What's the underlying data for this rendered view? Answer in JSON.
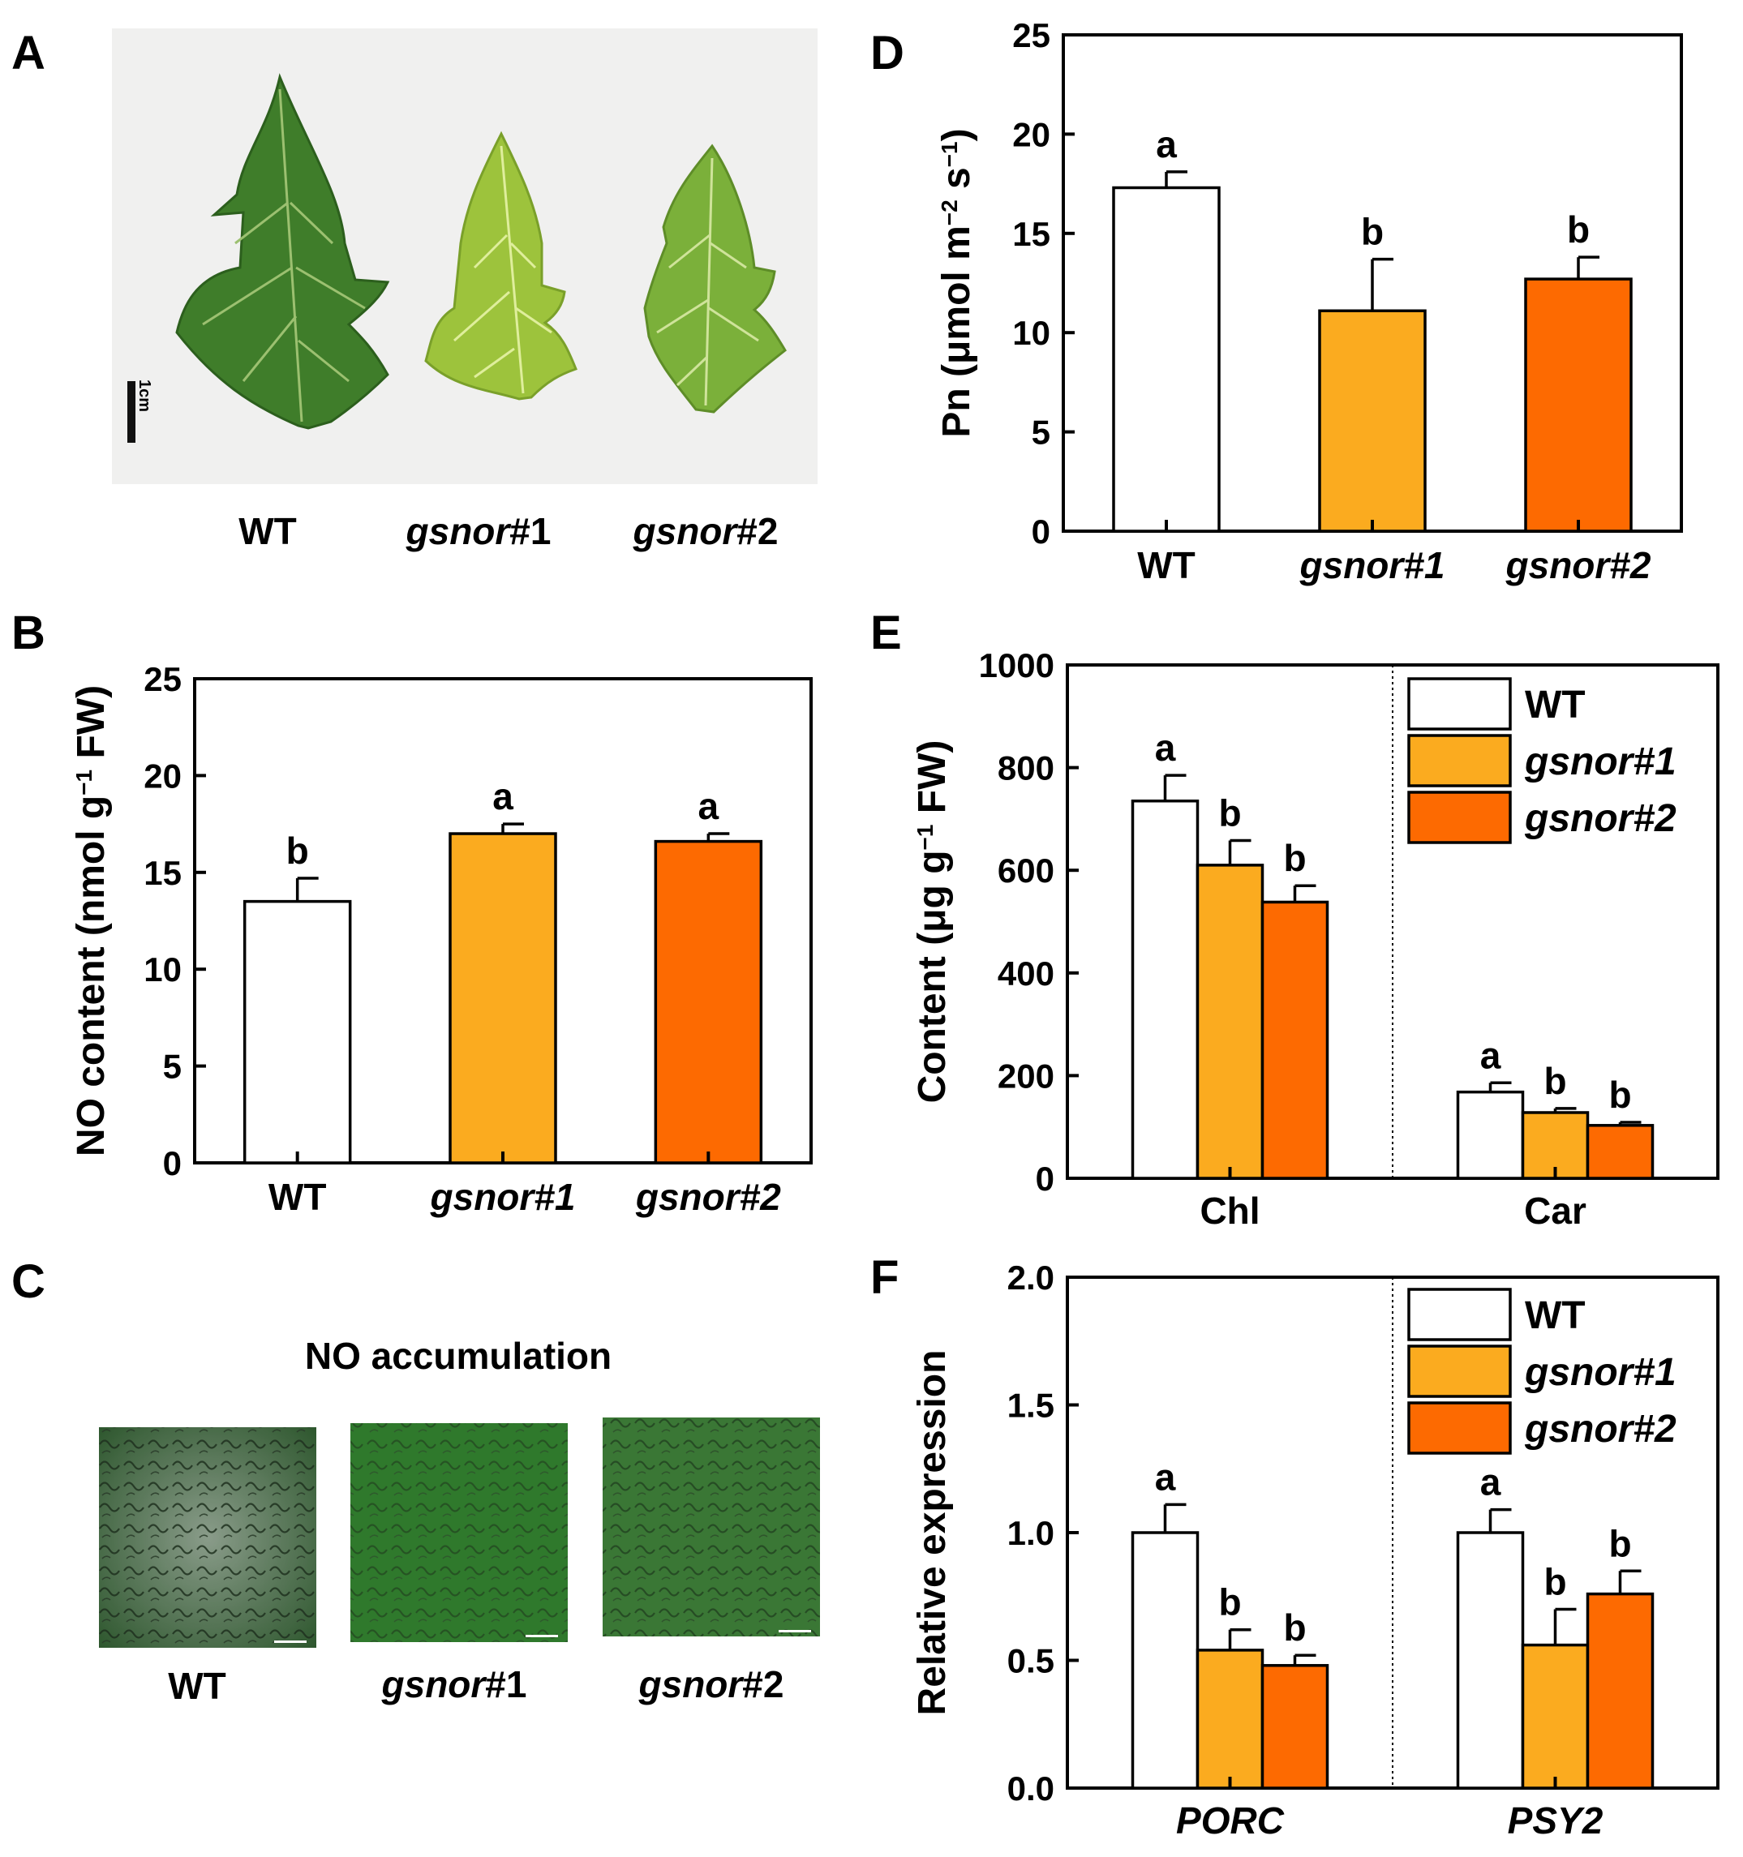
{
  "colors": {
    "wt": "#ffffff",
    "gsnor1": "#fbab1f",
    "gsnor2": "#fd6a01",
    "stroke": "#000000"
  },
  "panelA": {
    "letter": "A",
    "scale": "1cm",
    "labels": [
      {
        "pre": "WT",
        "post": ""
      },
      {
        "pre": "gsnor",
        "post": "#1"
      },
      {
        "pre": "gsnor",
        "post": "#2"
      }
    ]
  },
  "panelC": {
    "letter": "C",
    "title": "NO accumulation",
    "labels": [
      {
        "pre": "WT",
        "post": ""
      },
      {
        "pre": "gsnor",
        "post": "#1"
      },
      {
        "pre": "gsnor",
        "post": "#2"
      }
    ]
  },
  "chart_data": [
    {
      "panel": "B",
      "type": "bar",
      "categories": [
        "WT",
        "gsnor#1",
        "gsnor#2"
      ],
      "values": [
        13.5,
        17.0,
        16.6
      ],
      "errors": [
        1.2,
        0.5,
        0.4
      ],
      "significance": [
        "b",
        "a",
        "a"
      ],
      "ylabel": "NO content (nmol g-1 FW)",
      "ylabel_parts": {
        "pre": "NO content (nmol g",
        "sup": "−1",
        "post": " FW)"
      },
      "ylim": [
        0,
        25
      ],
      "yticks": [
        0,
        5,
        10,
        15,
        20,
        25
      ]
    },
    {
      "panel": "D",
      "type": "bar",
      "categories": [
        "WT",
        "gsnor#1",
        "gsnor#2"
      ],
      "values": [
        17.3,
        11.1,
        12.7
      ],
      "errors": [
        0.8,
        2.6,
        1.1
      ],
      "significance": [
        "a",
        "b",
        "b"
      ],
      "ylabel": "Pn (μmol m-2 s-1)",
      "ylabel_parts": {
        "pre": "Pn (μmol m",
        "sup": "−2",
        "mid": " s",
        "sup2": "−1",
        "post": ")"
      },
      "ylim": [
        0,
        25
      ],
      "yticks": [
        0,
        5,
        10,
        15,
        20,
        25
      ]
    },
    {
      "panel": "E",
      "type": "bar",
      "groups": [
        "Chl",
        "Car"
      ],
      "series": [
        {
          "name": "WT",
          "values": [
            735,
            168
          ],
          "errors": [
            50,
            18
          ],
          "significance": [
            "a",
            "a"
          ]
        },
        {
          "name": "gsnor#1",
          "values": [
            610,
            128
          ],
          "errors": [
            48,
            8
          ],
          "significance": [
            "b",
            "b"
          ]
        },
        {
          "name": "gsnor#2",
          "values": [
            538,
            103
          ],
          "errors": [
            32,
            6
          ],
          "significance": [
            "b",
            "b"
          ]
        }
      ],
      "ylabel": "Content (μg g-1 FW)",
      "ylabel_parts": {
        "pre": "Content (μg g",
        "sup": "−1",
        "post": " FW)"
      },
      "ylim": [
        0,
        1000
      ],
      "yticks": [
        0,
        200,
        400,
        600,
        800,
        1000
      ],
      "legend": "top-right",
      "italic_groups": false
    },
    {
      "panel": "F",
      "type": "bar",
      "groups": [
        "PORC",
        "PSY2"
      ],
      "series": [
        {
          "name": "WT",
          "values": [
            1.0,
            1.0
          ],
          "errors": [
            0.11,
            0.09
          ],
          "significance": [
            "a",
            "a"
          ]
        },
        {
          "name": "gsnor#1",
          "values": [
            0.54,
            0.56
          ],
          "errors": [
            0.08,
            0.14
          ],
          "significance": [
            "b",
            "b"
          ]
        },
        {
          "name": "gsnor#2",
          "values": [
            0.48,
            0.76
          ],
          "errors": [
            0.04,
            0.09
          ],
          "significance": [
            "b",
            "b"
          ]
        }
      ],
      "ylabel": "Relative expression",
      "ylim": [
        0,
        2
      ],
      "yticks": [
        "0.0",
        "0.5",
        "1.0",
        "1.5",
        "2.0"
      ],
      "legend": "top-right",
      "italic_groups": true
    }
  ]
}
